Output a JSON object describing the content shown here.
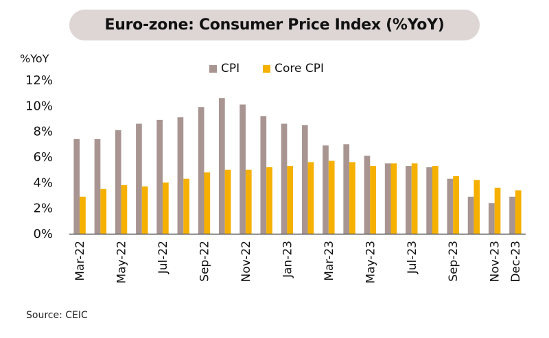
{
  "chart_data": {
    "type": "bar",
    "title": "Euro-zone: Consumer Price Index (%YoY)",
    "ylabel": "%YoY",
    "xlabel": "",
    "ylim": [
      0,
      12
    ],
    "yticks": [
      0,
      2,
      4,
      6,
      8,
      10,
      12
    ],
    "ytick_labels": [
      "0%",
      "2%",
      "4%",
      "6%",
      "8%",
      "10%",
      "12%"
    ],
    "grid": false,
    "legend_position": "top-center",
    "categories": [
      "Mar-22",
      "Apr-22",
      "May-22",
      "Jun-22",
      "Jul-22",
      "Aug-22",
      "Sep-22",
      "Oct-22",
      "Nov-22",
      "Dec-22",
      "Jan-23",
      "Feb-23",
      "Mar-23",
      "Apr-23",
      "May-23",
      "Jun-23",
      "Jul-23",
      "Aug-23",
      "Sep-23",
      "Oct-23",
      "Nov-23",
      "Dec-23"
    ],
    "xtick_labels": [
      "Mar-22",
      "",
      "May-22",
      "",
      "Jul-22",
      "",
      "Sep-22",
      "",
      "Nov-22",
      "",
      "Jan-23",
      "",
      "Mar-23",
      "",
      "May-23",
      "",
      "Jul-23",
      "",
      "Sep-23",
      "",
      "Nov-23",
      "Dec-23"
    ],
    "series": [
      {
        "name": "CPI",
        "color": "#a89592",
        "values": [
          7.4,
          7.4,
          8.1,
          8.6,
          8.9,
          9.1,
          9.9,
          10.6,
          10.1,
          9.2,
          8.6,
          8.5,
          6.9,
          7.0,
          6.1,
          5.5,
          5.3,
          5.2,
          4.3,
          2.9,
          2.4,
          2.9
        ]
      },
      {
        "name": "Core CPI",
        "color": "#f5b000",
        "values": [
          2.9,
          3.5,
          3.8,
          3.7,
          4.0,
          4.3,
          4.8,
          5.0,
          5.0,
          5.2,
          5.3,
          5.6,
          5.7,
          5.6,
          5.3,
          5.5,
          5.5,
          5.3,
          4.5,
          4.2,
          3.6,
          3.4
        ]
      }
    ],
    "source": "Source: CEIC"
  },
  "colors": {
    "title_background": "#ddd6d4",
    "axis": "#555555"
  }
}
